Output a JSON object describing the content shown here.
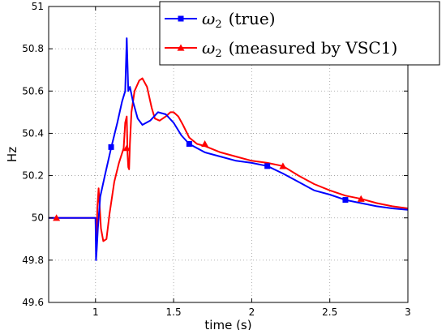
{
  "chart_data": {
    "type": "line",
    "xlabel": "time (s)",
    "ylabel": "Hz",
    "xlim": [
      0.7,
      3.0
    ],
    "ylim": [
      49.6,
      51.0
    ],
    "xticks": [
      1,
      1.5,
      2,
      2.5,
      3
    ],
    "xtick_labels": [
      "1",
      "1.5",
      "2",
      "2.5",
      "3"
    ],
    "yticks": [
      49.6,
      49.8,
      50.0,
      50.2,
      50.4,
      50.6,
      50.8,
      51.0
    ],
    "ytick_labels": [
      "49.6",
      "49.8",
      "50",
      "50.2",
      "50.4",
      "50.6",
      "50.8",
      "51"
    ],
    "grid": true,
    "legend_position": "top-right",
    "series": [
      {
        "name_symbol": "ω",
        "name_sub": "2",
        "name_suffix": "(true)",
        "color": "#0000ff",
        "marker": "square",
        "x": [
          0.7,
          1.0,
          1.003,
          1.008,
          1.015,
          1.03,
          1.06,
          1.1,
          1.14,
          1.17,
          1.19,
          1.2,
          1.21,
          1.22,
          1.24,
          1.27,
          1.3,
          1.35,
          1.4,
          1.45,
          1.5,
          1.55,
          1.6,
          1.7,
          1.8,
          1.9,
          2.0,
          2.1,
          2.2,
          2.3,
          2.4,
          2.5,
          2.6,
          2.7,
          2.8,
          2.9,
          3.0
        ],
        "y": [
          50.0,
          50.0,
          49.8,
          49.85,
          49.95,
          50.1,
          50.2,
          50.33,
          50.45,
          50.55,
          50.6,
          50.85,
          50.6,
          50.62,
          50.55,
          50.47,
          50.44,
          50.46,
          50.5,
          50.49,
          50.45,
          50.39,
          50.35,
          50.31,
          50.29,
          50.27,
          50.26,
          50.245,
          50.21,
          50.17,
          50.13,
          50.11,
          50.085,
          50.07,
          50.055,
          50.045,
          50.038
        ],
        "marker_x": [
          1.1,
          1.6,
          2.1,
          2.6
        ],
        "marker_y": [
          50.335,
          50.35,
          50.245,
          50.085
        ]
      },
      {
        "name_symbol": "ω",
        "name_sub": "2",
        "name_suffix": "(measured by VSC1)",
        "color": "#ff0000",
        "marker": "triangle",
        "x": [
          0.7,
          1.0,
          1.005,
          1.012,
          1.02,
          1.035,
          1.05,
          1.07,
          1.09,
          1.12,
          1.15,
          1.18,
          1.19,
          1.2,
          1.205,
          1.21,
          1.215,
          1.22,
          1.23,
          1.25,
          1.28,
          1.3,
          1.33,
          1.36,
          1.38,
          1.41,
          1.45,
          1.48,
          1.5,
          1.53,
          1.56,
          1.6,
          1.65,
          1.7,
          1.8,
          1.9,
          2.0,
          2.1,
          2.2,
          2.3,
          2.4,
          2.5,
          2.6,
          2.7,
          2.8,
          2.9,
          3.0
        ],
        "y": [
          50.0,
          50.0,
          49.85,
          50.05,
          50.14,
          49.95,
          49.89,
          49.9,
          50.02,
          50.17,
          50.26,
          50.33,
          50.45,
          50.48,
          50.3,
          50.24,
          50.23,
          50.35,
          50.5,
          50.6,
          50.65,
          50.66,
          50.62,
          50.52,
          50.47,
          50.46,
          50.48,
          50.5,
          50.5,
          50.48,
          50.44,
          50.38,
          50.35,
          50.34,
          50.31,
          50.29,
          50.27,
          50.26,
          50.245,
          50.2,
          50.16,
          50.13,
          50.105,
          50.09,
          50.07,
          50.055,
          50.045
        ],
        "marker_x": [
          0.75,
          1.2,
          1.7,
          2.2,
          2.7
        ],
        "marker_y": [
          50.0,
          50.33,
          50.35,
          50.245,
          50.09
        ]
      }
    ]
  }
}
